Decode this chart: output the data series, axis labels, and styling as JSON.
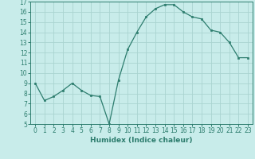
{
  "x": [
    0,
    1,
    2,
    3,
    4,
    5,
    6,
    7,
    8,
    9,
    10,
    11,
    12,
    13,
    14,
    15,
    16,
    17,
    18,
    19,
    20,
    21,
    22,
    23
  ],
  "y": [
    9.0,
    7.3,
    7.7,
    8.3,
    9.0,
    8.3,
    7.8,
    7.7,
    5.0,
    9.3,
    12.3,
    14.0,
    15.5,
    16.3,
    16.7,
    16.7,
    16.0,
    15.5,
    15.3,
    14.2,
    14.0,
    13.0,
    11.5,
    11.5
  ],
  "xlabel": "Humidex (Indice chaleur)",
  "xlim": [
    -0.5,
    23.5
  ],
  "ylim": [
    5,
    17
  ],
  "yticks": [
    5,
    6,
    7,
    8,
    9,
    10,
    11,
    12,
    13,
    14,
    15,
    16,
    17
  ],
  "xticks": [
    0,
    1,
    2,
    3,
    4,
    5,
    6,
    7,
    8,
    9,
    10,
    11,
    12,
    13,
    14,
    15,
    16,
    17,
    18,
    19,
    20,
    21,
    22,
    23
  ],
  "line_color": "#2d7d6e",
  "bg_color": "#c8ecea",
  "grid_color": "#aad4d0",
  "label_fontsize": 6.5,
  "tick_fontsize": 5.5
}
